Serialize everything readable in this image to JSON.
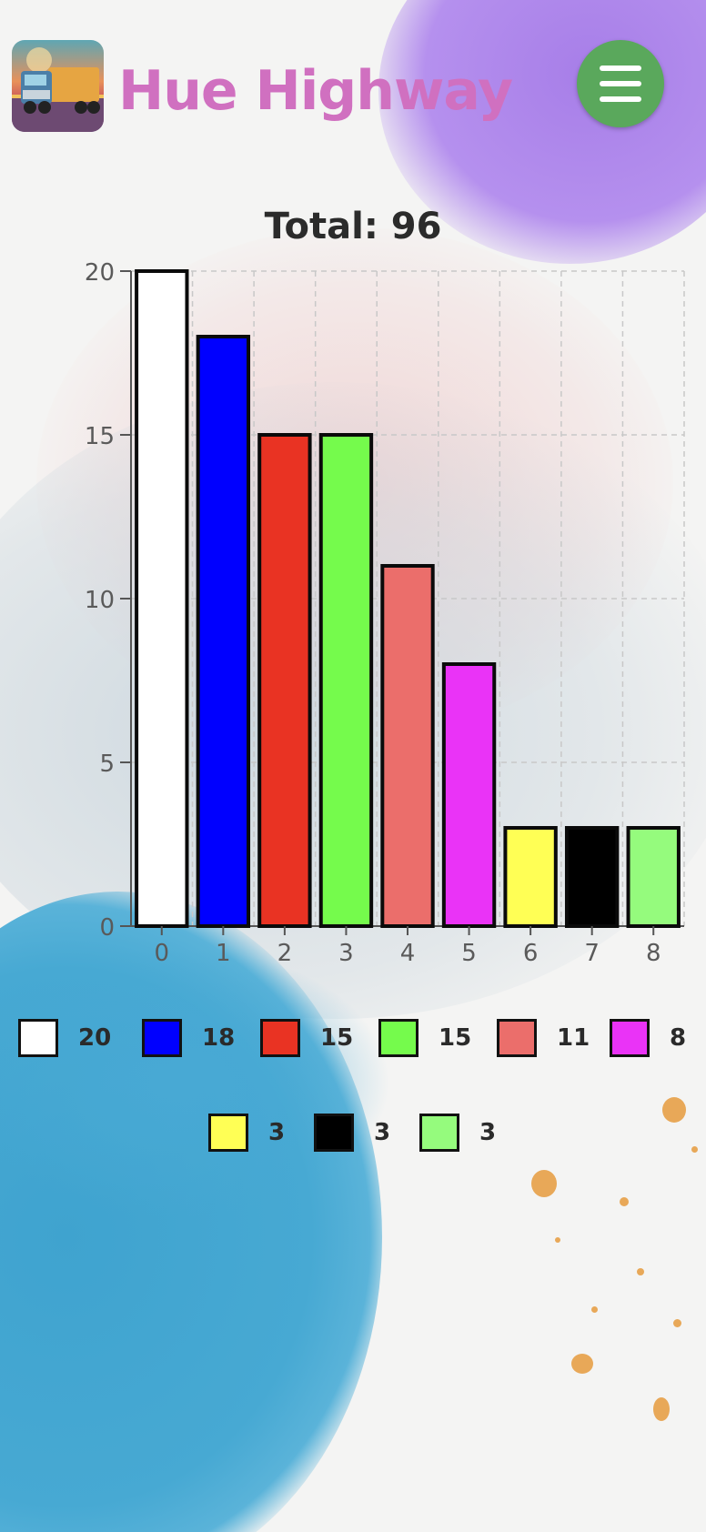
{
  "app": {
    "title": "Hue Highway",
    "logo_icon": "truck-logo-icon",
    "menu_icon": "hamburger-menu-icon",
    "brand_color": "#d070c0",
    "menu_color": "#5aa85c"
  },
  "chart_data": {
    "type": "bar",
    "title": "Total: 96",
    "categories": [
      "0",
      "1",
      "2",
      "3",
      "4",
      "5",
      "6",
      "7",
      "8"
    ],
    "values": [
      20,
      18,
      15,
      15,
      11,
      8,
      3,
      3,
      3
    ],
    "colors": [
      "#ffffff",
      "#0000ff",
      "#e93323",
      "#75fb4c",
      "#eb6e6b",
      "#ea33f7",
      "#ffff55",
      "#000000",
      "#95fb7d"
    ],
    "yticks": [
      "0",
      "5",
      "10",
      "15",
      "20"
    ],
    "ylim": [
      0,
      20
    ],
    "xlabel": "",
    "ylabel": "",
    "grid": true,
    "legend": "bottom"
  },
  "legend": {
    "items": [
      {
        "label": "20",
        "color": "#ffffff"
      },
      {
        "label": "18",
        "color": "#0000ff"
      },
      {
        "label": "15",
        "color": "#e93323"
      },
      {
        "label": "15",
        "color": "#75fb4c"
      },
      {
        "label": "11",
        "color": "#eb6e6b"
      },
      {
        "label": "8",
        "color": "#ea33f7"
      },
      {
        "label": "3",
        "color": "#ffff55"
      },
      {
        "label": "3",
        "color": "#000000"
      },
      {
        "label": "3",
        "color": "#95fb7d"
      }
    ]
  }
}
